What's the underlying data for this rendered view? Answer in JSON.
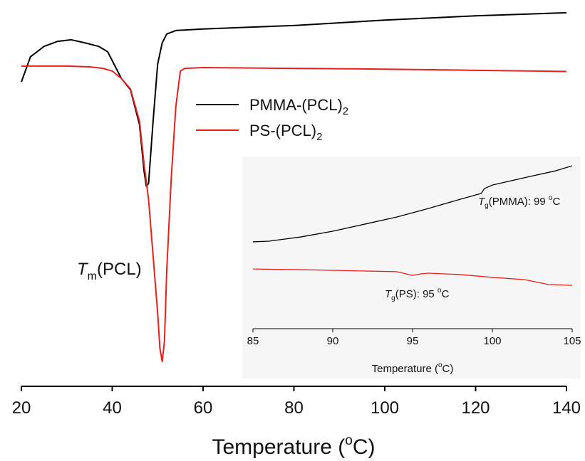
{
  "chart_data": [
    {
      "type": "line",
      "xlabel": [
        "Temperature (",
        "o",
        "C)"
      ],
      "xlim": [
        20,
        140
      ],
      "xticks": [
        20,
        40,
        60,
        80,
        100,
        120,
        140
      ],
      "ylim": [
        0,
        100
      ],
      "annotations": [
        {
          "text": [
            "T",
            "m",
            "(PCL)"
          ]
        }
      ],
      "series": [
        {
          "name": "PMMA-(PCL)",
          "name_subscript": "2",
          "color": "#000000",
          "x": [
            20,
            22,
            25,
            28,
            31,
            34,
            37,
            39,
            40,
            42,
            44,
            46,
            47,
            47.5,
            48,
            49,
            50,
            51,
            52,
            54,
            60,
            80,
            100,
            120,
            140
          ],
          "values": [
            78.8,
            85.3,
            88.0,
            89.3,
            89.7,
            88.9,
            88.0,
            86.6,
            84.3,
            79.7,
            76.8,
            67.8,
            55.8,
            51.8,
            52.5,
            68.7,
            83.4,
            88.9,
            91.2,
            92.1,
            92.5,
            93.4,
            94.8,
            95.9,
            96.7
          ]
        },
        {
          "name": "PS-(PCL)",
          "name_subscript": "2",
          "color": "#e8201c",
          "x": [
            20,
            30,
            35,
            38,
            40,
            42,
            44,
            46,
            47,
            48,
            49,
            50,
            50.5,
            51,
            51.5,
            52,
            53,
            54,
            55,
            56,
            60,
            80,
            100,
            120,
            140
          ],
          "values": [
            82.9,
            82.9,
            82.7,
            82.3,
            81.6,
            79.7,
            77.0,
            68.7,
            57.6,
            48.4,
            33.7,
            19.0,
            9.8,
            6.4,
            11.6,
            30.0,
            54.0,
            72.4,
            81.6,
            82.3,
            82.5,
            82.3,
            82.1,
            81.8,
            81.5
          ]
        }
      ]
    },
    {
      "type": "line",
      "xlabel": [
        "Temperature (",
        "o",
        "C)"
      ],
      "xlim": [
        85,
        105
      ],
      "xticks": [
        85,
        90,
        95,
        100,
        105
      ],
      "ylim": [
        0,
        100
      ],
      "annotations": [
        {
          "text": [
            "T",
            "g",
            "(PMMA): 99 ",
            "o",
            "C"
          ]
        },
        {
          "text": [
            "T",
            "g",
            "(PS): 95 ",
            "o",
            "C"
          ]
        }
      ],
      "series": [
        {
          "color": "#000000",
          "x": [
            85,
            86,
            88,
            90,
            92,
            94,
            96,
            98,
            99.3,
            99.5,
            100,
            102,
            104,
            105
          ],
          "values": [
            51.5,
            51.9,
            54.4,
            57.8,
            62.0,
            66.2,
            71.3,
            76.8,
            80.2,
            83.1,
            85.2,
            89.5,
            93.7,
            96.6
          ]
        },
        {
          "color": "#e8201c",
          "x": [
            85,
            88,
            92,
            94,
            95,
            95.5,
            96,
            98,
            100,
            102,
            103.5,
            105
          ],
          "values": [
            35.4,
            35.0,
            34.2,
            33.8,
            31.6,
            32.5,
            32.9,
            32.1,
            30.4,
            29.1,
            26.2,
            25.7
          ]
        }
      ]
    }
  ]
}
